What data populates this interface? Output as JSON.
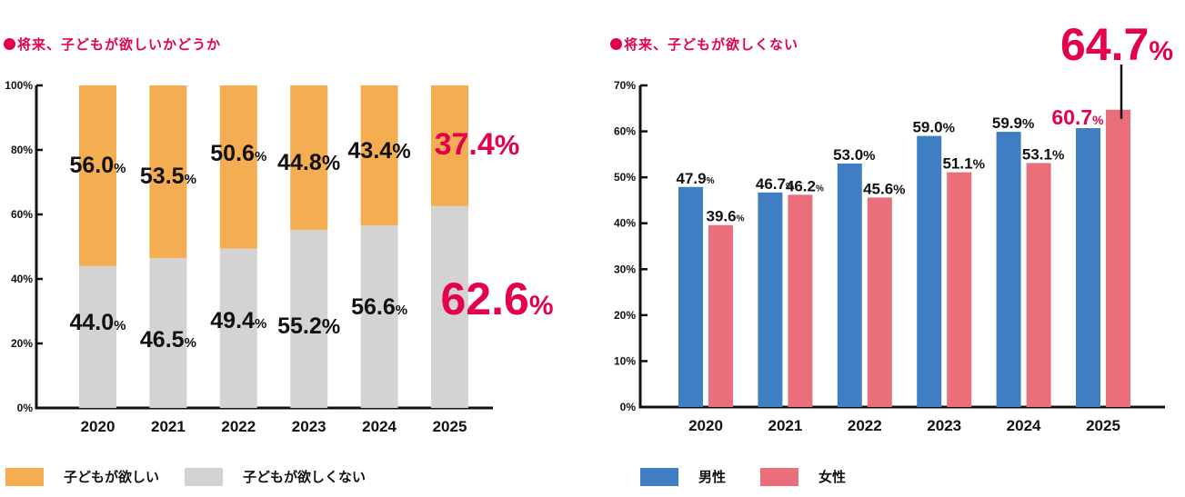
{
  "colors": {
    "want": "#f5ad52",
    "not_want": "#d5d2d3",
    "male": "#3f7ec2",
    "female": "#ea6f7b",
    "highlight": "#e5004f",
    "text": "#111111",
    "axis": "#111111"
  },
  "chart_data": [
    {
      "type": "bar",
      "stacked": true,
      "title": "●将来、子どもが欲しいかどうか",
      "title_text": "将来、子どもが欲しいかどうか",
      "xlabel": "",
      "ylabel": "",
      "ylim": [
        0,
        100
      ],
      "yticks": [
        0,
        20,
        40,
        60,
        80,
        100
      ],
      "ytick_labels": [
        "0%",
        "20%",
        "40%",
        "60%",
        "80%",
        "100%"
      ],
      "categories": [
        "2020",
        "2021",
        "2022",
        "2023",
        "2024",
        "2025"
      ],
      "grid": false,
      "legend_position": "bottom-left",
      "series": [
        {
          "name": "子どもが欲しくない",
          "values": [
            44.0,
            46.5,
            49.4,
            55.2,
            56.6,
            62.6
          ],
          "position": "bottom"
        },
        {
          "name": "子どもが欲しい",
          "values": [
            56.0,
            53.5,
            50.6,
            44.8,
            43.4,
            37.4
          ],
          "position": "top"
        }
      ],
      "data_labels": {
        "子どもが欲しい": [
          "56.0%",
          "53.5%",
          "50.6%",
          "44.8%",
          "43.4%",
          "37.4%"
        ],
        "子どもが欲しくない": [
          "44.0%",
          "46.5%",
          "49.4%",
          "55.2%",
          "56.6%",
          "62.6%"
        ]
      },
      "highlighted_category": "2025"
    },
    {
      "type": "bar",
      "stacked": false,
      "title": "●将来、子どもが欲しくない",
      "title_text": "将来、子どもが欲しくない",
      "xlabel": "",
      "ylabel": "",
      "ylim": [
        0,
        70
      ],
      "yticks": [
        0,
        10,
        20,
        30,
        40,
        50,
        60,
        70
      ],
      "ytick_labels": [
        "0%",
        "10%",
        "20%",
        "30%",
        "40%",
        "50%",
        "60%",
        "70%"
      ],
      "categories": [
        "2020",
        "2021",
        "2022",
        "2023",
        "2024",
        "2025"
      ],
      "grid": false,
      "legend_position": "bottom-left",
      "series": [
        {
          "name": "男性",
          "values": [
            47.9,
            46.7,
            53.0,
            59.0,
            59.9,
            60.7
          ]
        },
        {
          "name": "女性",
          "values": [
            39.6,
            46.2,
            45.6,
            51.1,
            53.1,
            64.7
          ]
        }
      ],
      "data_labels": {
        "男性": [
          "47.9%",
          "46.7%",
          "53.0%",
          "59.0%",
          "59.9%",
          "60.7%"
        ],
        "女性": [
          "39.6%",
          "46.2%",
          "45.6%",
          "51.1%",
          "53.1%",
          "64.7%"
        ]
      },
      "highlighted_category": "2025",
      "annotation": {
        "text": "64.7%",
        "series": "女性",
        "category": "2025",
        "style": "callout-line"
      }
    }
  ],
  "legends": {
    "left": [
      {
        "label": "子どもが欲しい",
        "color_key": "want"
      },
      {
        "label": "子どもが欲しくない",
        "color_key": "not_want"
      }
    ],
    "right": [
      {
        "label": "男性",
        "color_key": "male"
      },
      {
        "label": "女性",
        "color_key": "female"
      }
    ]
  }
}
